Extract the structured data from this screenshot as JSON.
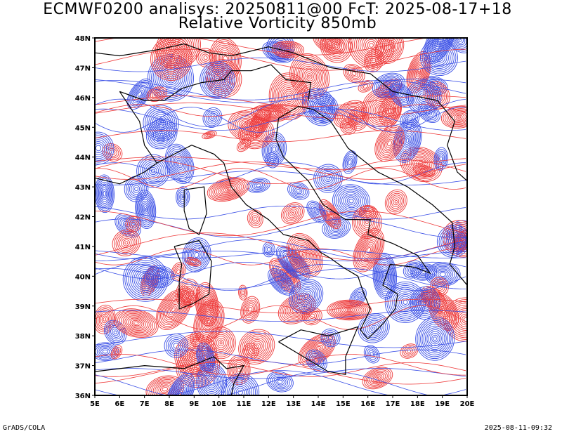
{
  "header": {
    "line1": "ECMWF0200 analisys: 20250811@00 FcT: 2025-08-17+18",
    "line2": "Relative Vorticity 850mb"
  },
  "map": {
    "lon_ticks": [
      "5E",
      "6E",
      "7E",
      "8E",
      "9E",
      "10E",
      "11E",
      "12E",
      "13E",
      "14E",
      "15E",
      "16E",
      "17E",
      "18E",
      "19E",
      "20E"
    ],
    "lat_ticks": [
      "48N",
      "47N",
      "46N",
      "45N",
      "44N",
      "43N",
      "42N",
      "41N",
      "40N",
      "39N",
      "38N",
      "37N",
      "36N"
    ],
    "lon_range": [
      5,
      20
    ],
    "lat_range": [
      36,
      48
    ],
    "field": "Relative Vorticity 850mb",
    "colors": {
      "positive": "#ee3a3a",
      "negative": "#3a4fe6",
      "coast": "#000000"
    }
  },
  "footer": {
    "left": "GrADS/COLA",
    "right": "2025-08-11-09:32"
  }
}
